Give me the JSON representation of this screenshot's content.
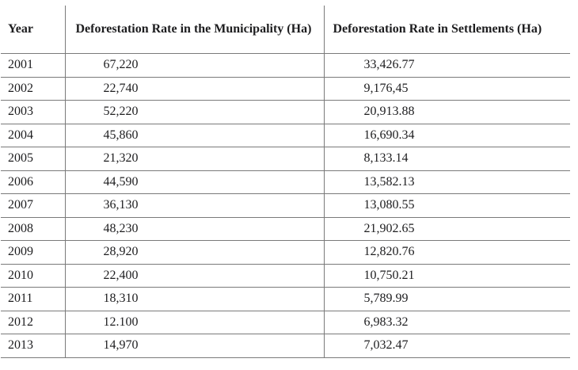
{
  "table": {
    "columns": [
      "Year",
      "Deforestation Rate in the Municipality (Ha)",
      "Deforestation Rate in Settlements (Ha)"
    ],
    "rows": [
      [
        "2001",
        "67,220",
        "33,426.77"
      ],
      [
        "2002",
        "22,740",
        "9,176,45"
      ],
      [
        "2003",
        "52,220",
        "20,913.88"
      ],
      [
        "2004",
        "45,860",
        "16,690.34"
      ],
      [
        "2005",
        "21,320",
        "8,133.14"
      ],
      [
        "2006",
        "44,590",
        "13,582.13"
      ],
      [
        "2007",
        "36,130",
        "13,080.55"
      ],
      [
        "2008",
        "48,230",
        "21,902.65"
      ],
      [
        "2009",
        "28,920",
        "12,820.76"
      ],
      [
        "2010",
        "22,400",
        "10,750.21"
      ],
      [
        "2011",
        "18,310",
        "5,789.99"
      ],
      [
        "2012",
        "12.100",
        "6,983.32"
      ],
      [
        "2013",
        "14,970",
        "7,032.47"
      ]
    ],
    "line_color": "#7a7a7a",
    "text_color": "#1d1d1f"
  }
}
